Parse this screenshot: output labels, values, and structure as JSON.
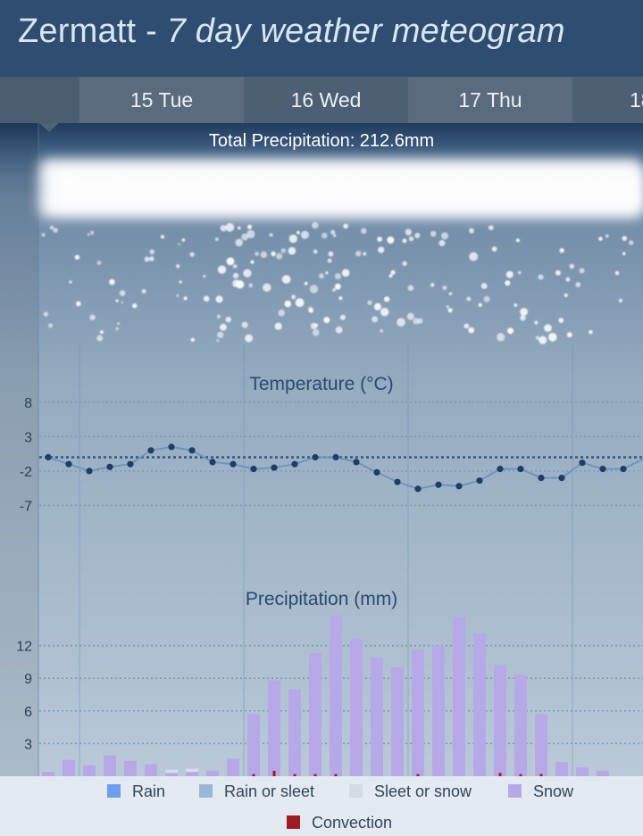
{
  "header": {
    "place": "Zermatt",
    "separator": " - ",
    "subtitle": "7 day weather meteogram"
  },
  "tabs": [
    "15 Tue",
    "16 Wed",
    "17 Thu",
    "18"
  ],
  "chart_data": [
    {
      "type": "bar",
      "title": "Total Precipitation: 212.6mm",
      "annotation": "snow clouds and snowflakes illustration",
      "total_mm": 212.6
    },
    {
      "type": "line",
      "title": "Temperature (°C)",
      "xlabel": "",
      "ylabel": "",
      "yticks": [
        8,
        3,
        -2,
        -7
      ],
      "ylim": [
        -7,
        8
      ],
      "reference_line": 0,
      "grid": true,
      "series": [
        {
          "values": [
            0,
            -1,
            -2,
            -1.4,
            -1,
            1,
            1.5,
            1,
            -0.7,
            -1,
            -1.7,
            -1.5,
            -1,
            0,
            0,
            -0.7,
            -2.2,
            -3.6,
            -4.6,
            -4,
            -4.2,
            -3.4,
            -1.7,
            -1.7,
            -3,
            -3,
            -0.8,
            -1.7,
            -1.7,
            -0.2
          ]
        }
      ]
    },
    {
      "type": "bar",
      "title": "Precipitation (mm)",
      "xlabel": "",
      "ylabel": "",
      "yticks": [
        12,
        9,
        6,
        3
      ],
      "ylim": [
        0,
        15
      ],
      "grid": true,
      "series": [
        {
          "name": "Snow",
          "color": "#b7a9e8",
          "values": [
            0.4,
            1.5,
            1,
            1.9,
            1.4,
            1.1,
            0.3,
            0.4,
            0.5,
            1.6,
            5.7,
            8.8,
            8,
            11.3,
            14.8,
            12.6,
            10.9,
            10,
            11.6,
            12,
            14.6,
            13.1,
            10.2,
            9.3,
            5.7,
            1.3,
            0.8,
            0.5,
            0,
            0
          ]
        },
        {
          "name": "Sleet or snow",
          "color": "#d7dde7",
          "values": [
            0,
            0,
            0,
            0,
            0,
            0,
            0.3,
            0.3,
            0,
            0,
            0,
            0,
            0,
            0,
            0,
            0,
            0,
            0,
            0,
            0,
            0,
            0,
            0,
            0,
            0,
            0,
            0,
            0,
            0,
            0
          ]
        },
        {
          "name": "Convection",
          "color": "#a01c25",
          "values": [
            0,
            0,
            0,
            0,
            0,
            0,
            0,
            0,
            0,
            0,
            0.2,
            0.5,
            0.2,
            0.2,
            0.2,
            0,
            0,
            0,
            0.2,
            0,
            0,
            0,
            0.3,
            0.2,
            0.2,
            0,
            0,
            0,
            0,
            0
          ]
        }
      ]
    }
  ],
  "legend": [
    {
      "label": "Rain",
      "color": "#6f9ef0"
    },
    {
      "label": "Rain or sleet",
      "color": "#9bb6d6"
    },
    {
      "label": "Sleet or snow",
      "color": "#d5dbe5"
    },
    {
      "label": "Snow",
      "color": "#b7a9e8"
    },
    {
      "label": "Convection",
      "color": "#a01c25"
    }
  ]
}
